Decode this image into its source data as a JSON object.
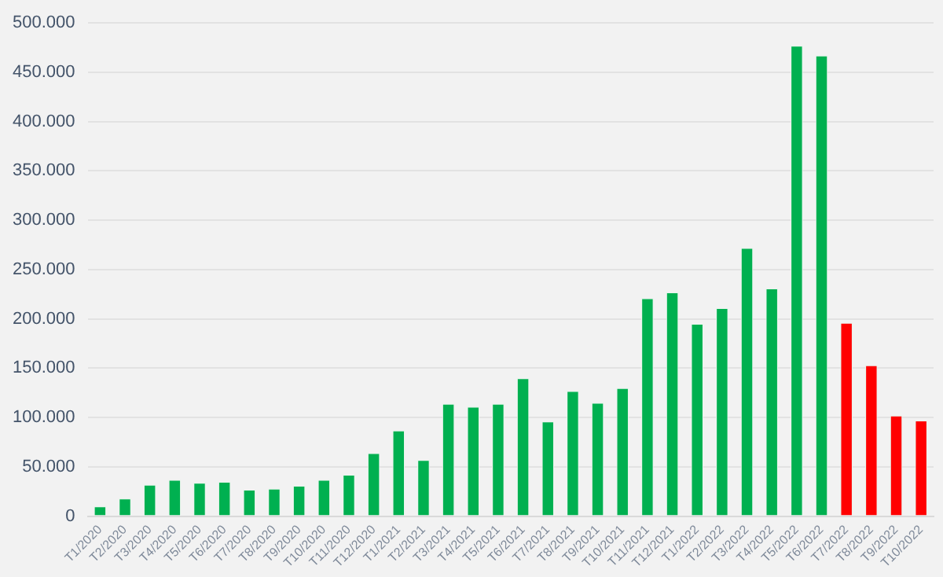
{
  "chart_data": {
    "type": "bar",
    "categories": [
      "T1/2020",
      "T2/2020",
      "T3/2020",
      "T4/2020",
      "T5/2020",
      "T6/2020",
      "T7/2020",
      "T8/2020",
      "T9/2020",
      "T10/2020",
      "T11/2020",
      "T12/2020",
      "T1/2021",
      "T2/2021",
      "T3/2021",
      "T4/2021",
      "T5/2021",
      "T6/2021",
      "T7/2021",
      "T8/2021",
      "T9/2021",
      "T10/2021",
      "T11/2021",
      "T12/2021",
      "T1/2022",
      "T2/2022",
      "T3/2022",
      "T4/2022",
      "T5/2022",
      "T6/2022",
      "T7/2022",
      "T8/2022",
      "T9/2022",
      "T10/2022"
    ],
    "values": [
      10000,
      18000,
      32000,
      37000,
      34000,
      35000,
      27000,
      28000,
      31000,
      37000,
      42000,
      64000,
      87000,
      57000,
      114000,
      111000,
      114000,
      140000,
      96000,
      127000,
      115000,
      130000,
      221000,
      227000,
      195000,
      211000,
      272000,
      231000,
      477000,
      467000,
      196000,
      153000,
      102000,
      97000
    ],
    "colors": [
      "#00b050",
      "#00b050",
      "#00b050",
      "#00b050",
      "#00b050",
      "#00b050",
      "#00b050",
      "#00b050",
      "#00b050",
      "#00b050",
      "#00b050",
      "#00b050",
      "#00b050",
      "#00b050",
      "#00b050",
      "#00b050",
      "#00b050",
      "#00b050",
      "#00b050",
      "#00b050",
      "#00b050",
      "#00b050",
      "#00b050",
      "#00b050",
      "#00b050",
      "#00b050",
      "#00b050",
      "#00b050",
      "#00b050",
      "#00b050",
      "#ff0000",
      "#ff0000",
      "#ff0000",
      "#ff0000"
    ],
    "ylim": [
      0,
      500000
    ],
    "yticks": [
      {
        "value": 0,
        "label": "0"
      },
      {
        "value": 50000,
        "label": "50.000"
      },
      {
        "value": 100000,
        "label": "100.000"
      },
      {
        "value": 150000,
        "label": "150.000"
      },
      {
        "value": 200000,
        "label": "200.000"
      },
      {
        "value": 250000,
        "label": "250.000"
      },
      {
        "value": 300000,
        "label": "300.000"
      },
      {
        "value": 350000,
        "label": "350.000"
      },
      {
        "value": 400000,
        "label": "400.000"
      },
      {
        "value": 450000,
        "label": "450.000"
      },
      {
        "value": 500000,
        "label": "500.000"
      }
    ],
    "grid": "y"
  }
}
